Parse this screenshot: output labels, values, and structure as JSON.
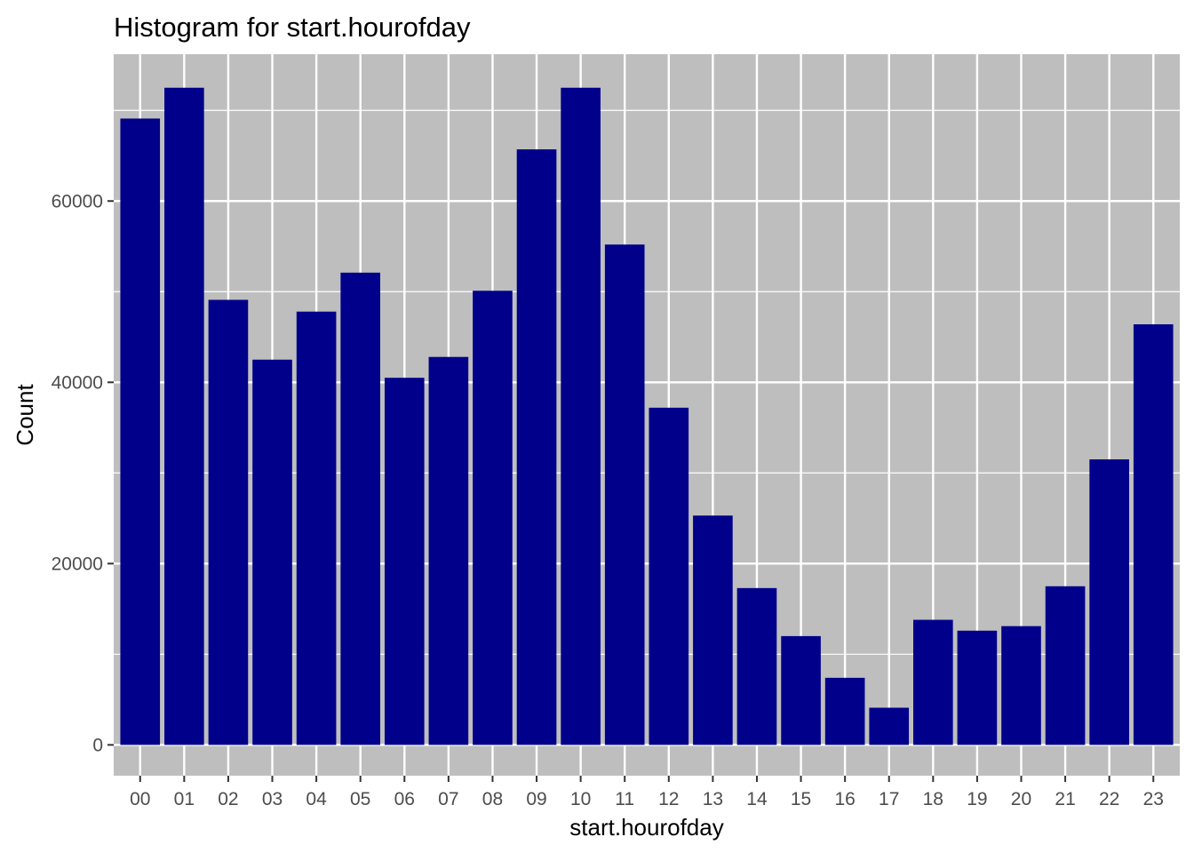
{
  "chart_data": {
    "type": "bar",
    "title": "Histogram for start.hourofday",
    "xlabel": "start.hourofday",
    "ylabel": "Count",
    "categories": [
      "00",
      "01",
      "02",
      "03",
      "04",
      "05",
      "06",
      "07",
      "08",
      "09",
      "10",
      "11",
      "12",
      "13",
      "14",
      "15",
      "16",
      "17",
      "18",
      "19",
      "20",
      "21",
      "22",
      "23"
    ],
    "values": [
      69100,
      72500,
      49100,
      42500,
      47800,
      52100,
      40500,
      42800,
      50100,
      65700,
      72500,
      55200,
      37200,
      25300,
      17300,
      12000,
      7400,
      4100,
      13800,
      12600,
      13100,
      17500,
      31500,
      46400
    ],
    "y_ticks": [
      0,
      20000,
      40000,
      60000
    ],
    "y_tick_labels": [
      "0",
      "20000",
      "40000",
      "60000"
    ],
    "ylim": [
      -3400,
      76200
    ],
    "grid": true,
    "legend": "none",
    "colors": {
      "bar": "#00008B",
      "panel_background": "#BEBEBE",
      "grid_line": "#FFFFFF"
    }
  }
}
